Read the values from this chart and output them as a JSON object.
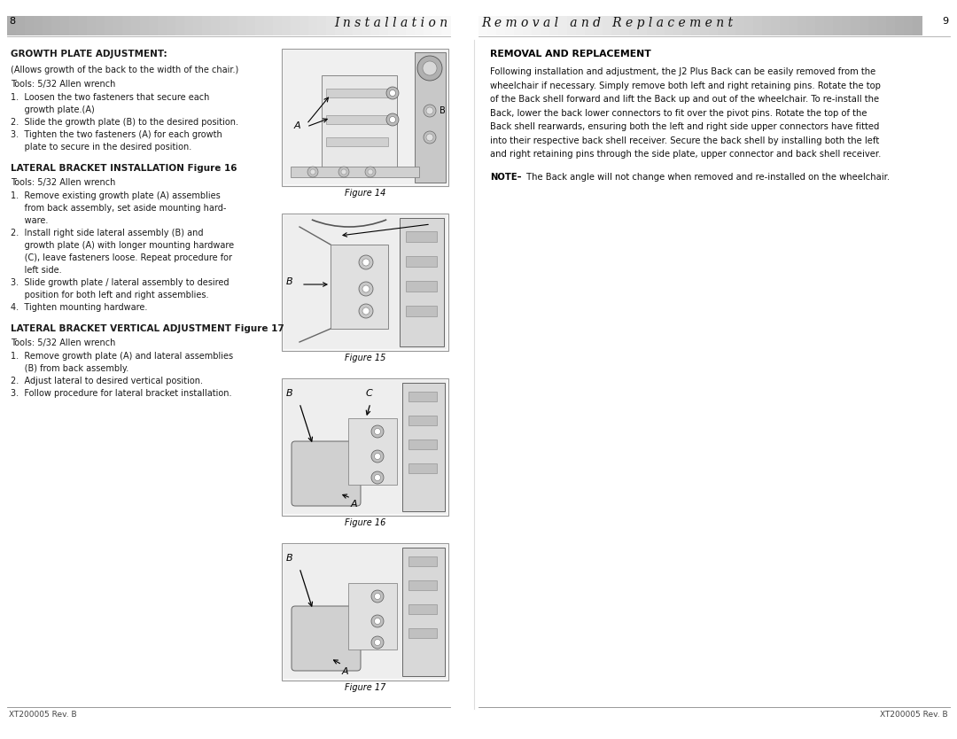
{
  "page_bg": "#ffffff",
  "header_text_left": "I n s t a l l a t i o n",
  "header_text_right": "R e m o v a l   a n d   R e p l a c e m e n t",
  "page_num_left": "8",
  "page_num_right": "9",
  "footer_text": "XT200005 Rev. B",
  "section1_title": "GROWTH PLATE ADJUSTMENT:",
  "section1_sub": "(Allows growth of the back to the width of the chair.)",
  "section1_tools": "Tools: 5/32 Allen wrench",
  "section1_steps": [
    "1.  Loosen the two fasteners that secure each",
    "     growth plate.(A)",
    "2.  Slide the growth plate (B) to the desired position.",
    "3.  Tighten the two fasteners (A) for each growth",
    "     plate to secure in the desired position."
  ],
  "section2_title": "LATERAL BRACKET INSTALLATION Figure 16",
  "section2_tools": "Tools: 5/32 Allen wrench",
  "section2_steps": [
    "1.  Remove existing growth plate (A) assemblies",
    "     from back assembly, set aside mounting hard-",
    "     ware.",
    "2.  Install right side lateral assembly (B) and",
    "     growth plate (A) with longer mounting hardware",
    "     (C), leave fasteners loose. Repeat procedure for",
    "     left side.",
    "3.  Slide growth plate / lateral assembly to desired",
    "     position for both left and right assemblies.",
    "4.  Tighten mounting hardware."
  ],
  "section3_title": "LATERAL BRACKET VERTICAL ADJUSTMENT Figure 17",
  "section3_tools": "Tools: 5/32 Allen wrench",
  "section3_steps": [
    "1.  Remove growth plate (A) and lateral assemblies",
    "     (B) from back assembly.",
    "2.  Adjust lateral to desired vertical position.",
    "3.  Follow procedure for lateral bracket installation."
  ],
  "right_title": "REMOVAL AND REPLACEMENT",
  "right_body_lines": [
    "Following installation and adjustment, the J2 Plus Back can be easily removed from the",
    "wheelchair if necessary. Simply remove both left and right retaining pins. Rotate the top",
    "of the Back shell forward and lift the Back up and out of the wheelchair. To re-install the",
    "Back, lower the back lower connectors to fit over the pivot pins. Rotate the top of the",
    "Back shell rearwards, ensuring both the left and right side upper connectors have fitted",
    "into their respective back shell receiver. Secure the back shell by installing both the left",
    "and right retaining pins through the side plate, upper connector and back shell receiver."
  ],
  "right_note_bold": "NOTE–",
  "right_note_rest": " The Back angle will not change when removed and re-installed on the wheelchair.",
  "fig14_caption": "Figure 14",
  "fig15_caption": "Figure 15",
  "fig16_caption": "Figure 16",
  "fig17_caption": "Figure 17",
  "text_color": "#1a1a1a",
  "header_gradient_left_start": "#c0c0c0",
  "header_gradient_left_end": "#e8e8e8",
  "fig_border_color": "#888888",
  "fig_bg": "#f8f8f8"
}
